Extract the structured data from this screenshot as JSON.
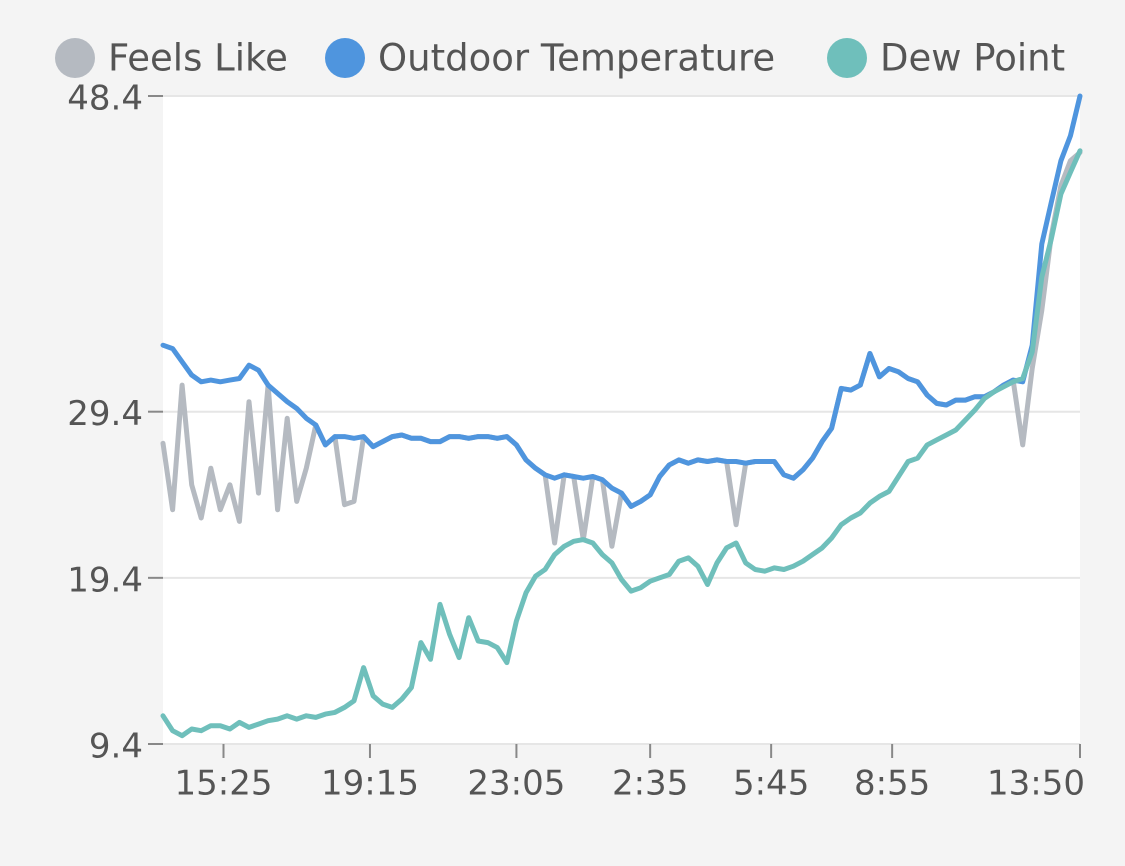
{
  "chart_data": {
    "type": "line",
    "x": [
      830,
      845,
      860,
      875,
      890,
      905,
      920,
      935,
      950,
      965,
      980,
      995,
      1010,
      1025,
      1040,
      1055,
      1070,
      1085,
      1100,
      1115,
      1130,
      1145,
      1160,
      1175,
      1190,
      1205,
      1220,
      1235,
      1250,
      1265,
      1280,
      1295,
      1310,
      1325,
      1340,
      1355,
      1370,
      1385,
      1400,
      1415,
      1430,
      1445,
      1460,
      1475,
      1490,
      1505,
      1520,
      1535,
      1550,
      1565,
      1580,
      1595,
      1610,
      1625,
      1640,
      1655,
      1670,
      1685,
      1700,
      1715,
      1730,
      1745,
      1760,
      1775,
      1790,
      1805,
      1820,
      1835,
      1850,
      1865,
      1880,
      1895,
      1910,
      1925,
      1940,
      1955,
      1970,
      1985,
      2000,
      2015,
      2030,
      2045,
      2060,
      2075,
      2090,
      2105,
      2120,
      2135,
      2150,
      2165,
      2180,
      2195,
      2210,
      2225,
      2240,
      2255,
      2270
    ],
    "series": [
      {
        "name": "Feels Like",
        "color": "#b5bac1",
        "values": [
          27.5,
          23.5,
          31.0,
          25.0,
          23.0,
          26.0,
          23.5,
          25.0,
          22.8,
          30.0,
          24.5,
          31.0,
          23.5,
          29.0,
          24.0,
          26.0,
          28.6,
          27.4,
          27.9,
          23.8,
          24.0,
          27.9,
          27.3,
          27.6,
          27.9,
          28.0,
          27.8,
          27.8,
          27.6,
          27.6,
          27.9,
          27.9,
          27.8,
          27.9,
          27.9,
          27.8,
          27.9,
          27.4,
          26.5,
          26.0,
          25.6,
          21.5,
          25.6,
          25.5,
          21.7,
          25.5,
          25.3,
          21.3,
          24.5,
          23.7,
          24.0,
          24.4,
          25.5,
          26.2,
          26.5,
          26.3,
          26.5,
          26.4,
          26.5,
          26.4,
          22.6,
          26.3,
          26.4,
          26.4,
          26.4,
          25.6,
          25.4,
          25.9,
          26.6,
          27.6,
          28.4,
          30.8,
          30.7,
          31.0,
          32.9,
          31.5,
          32.0,
          31.8,
          31.4,
          31.2,
          30.4,
          29.9,
          29.8,
          30.1,
          30.1,
          30.3,
          30.3,
          30.6,
          31.0,
          31.3,
          27.4,
          32.0,
          35.5,
          40.0,
          43.0,
          44.5,
          45.0
        ]
      },
      {
        "name": "Outdoor Temperature",
        "color": "#4f95de",
        "values": [
          33.4,
          33.2,
          32.4,
          31.6,
          31.2,
          31.3,
          31.2,
          31.3,
          31.4,
          32.2,
          31.9,
          31.0,
          30.5,
          30.0,
          29.6,
          29.0,
          28.6,
          27.4,
          27.9,
          27.9,
          27.8,
          27.9,
          27.3,
          27.6,
          27.9,
          28.0,
          27.8,
          27.8,
          27.6,
          27.6,
          27.9,
          27.9,
          27.8,
          27.9,
          27.9,
          27.8,
          27.9,
          27.4,
          26.5,
          26.0,
          25.6,
          25.4,
          25.6,
          25.5,
          25.4,
          25.5,
          25.3,
          24.8,
          24.5,
          23.7,
          24.0,
          24.4,
          25.5,
          26.2,
          26.5,
          26.3,
          26.5,
          26.4,
          26.5,
          26.4,
          26.4,
          26.3,
          26.4,
          26.4,
          26.4,
          25.6,
          25.4,
          25.9,
          26.6,
          27.6,
          28.4,
          30.8,
          30.7,
          31.0,
          32.9,
          31.5,
          32.0,
          31.8,
          31.4,
          31.2,
          30.4,
          29.9,
          29.8,
          30.1,
          30.1,
          30.3,
          30.3,
          30.6,
          31.0,
          31.3,
          31.2,
          33.4,
          39.5,
          42.0,
          44.5,
          46.0,
          48.4
        ]
      },
      {
        "name": "Dew Point",
        "color": "#6fbfbb",
        "values": [
          11.1,
          10.2,
          9.9,
          10.3,
          10.2,
          10.5,
          10.5,
          10.3,
          10.7,
          10.4,
          10.6,
          10.8,
          10.9,
          11.1,
          10.9,
          11.1,
          11.0,
          11.2,
          11.3,
          11.6,
          12.0,
          14.0,
          12.3,
          11.8,
          11.6,
          12.1,
          12.8,
          15.5,
          14.5,
          17.8,
          16.0,
          14.6,
          17.0,
          15.6,
          15.5,
          15.2,
          14.3,
          16.8,
          18.5,
          19.5,
          19.9,
          20.8,
          21.3,
          21.6,
          21.7,
          21.5,
          20.8,
          20.3,
          19.3,
          18.6,
          18.8,
          19.2,
          19.4,
          19.6,
          20.4,
          20.6,
          20.1,
          19.0,
          20.3,
          21.2,
          21.5,
          20.3,
          19.9,
          19.8,
          20.0,
          19.9,
          20.1,
          20.4,
          20.8,
          21.2,
          21.8,
          22.6,
          23.0,
          23.3,
          23.9,
          24.3,
          24.6,
          25.5,
          26.4,
          26.6,
          27.4,
          27.7,
          28.0,
          28.3,
          28.9,
          29.5,
          30.2,
          30.6,
          30.9,
          31.2,
          31.4,
          33.0,
          37.5,
          39.8,
          42.5,
          43.8,
          45.1
        ]
      }
    ],
    "xlim": [
      830,
      2270
    ],
    "xticks": [
      {
        "value": 925,
        "label": "15:25"
      },
      {
        "value": 1155,
        "label": "19:15"
      },
      {
        "value": 1385,
        "label": "23:05"
      },
      {
        "value": 1595,
        "label": "2:35"
      },
      {
        "value": 1785,
        "label": "5:45"
      },
      {
        "value": 1975,
        "label": "8:55"
      },
      {
        "value": 2270,
        "label": "13:50"
      }
    ],
    "ylim": [
      9.4,
      48.4
    ],
    "yticks": [
      9.4,
      19.4,
      29.4,
      48.4
    ],
    "grid": true,
    "legend": "top"
  }
}
